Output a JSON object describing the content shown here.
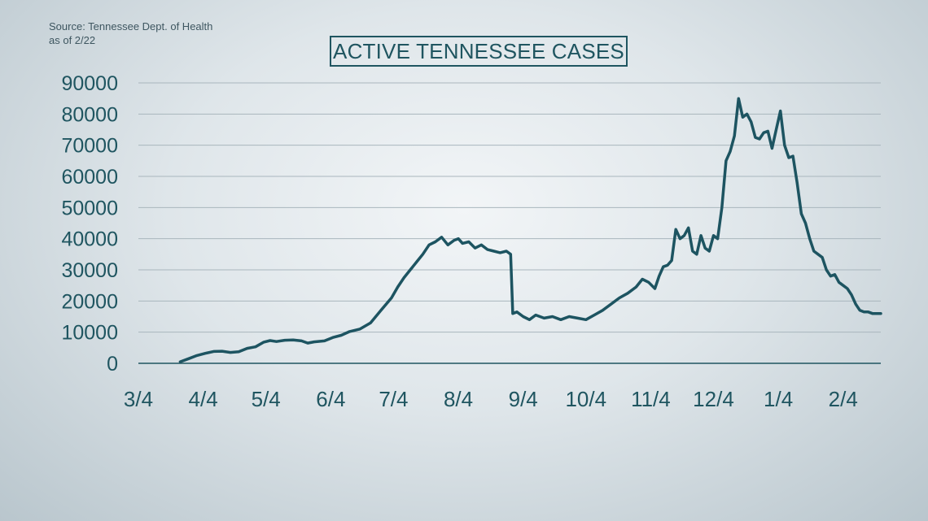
{
  "source": {
    "line1": "Source: Tennessee Dept. of Health",
    "line2": "as of 2/22"
  },
  "colors": {
    "line": "#1d5461",
    "text": "#1f5560",
    "grid": "#a9b6bd"
  },
  "chart_data": {
    "type": "line",
    "title": "ACTIVE TENNESSEE CASES",
    "xlabel": "",
    "ylabel": "",
    "ylim": [
      0,
      90000
    ],
    "yticks": [
      0,
      10000,
      20000,
      30000,
      40000,
      50000,
      60000,
      70000,
      80000,
      90000
    ],
    "ytick_labels": [
      "0",
      "10000",
      "20000",
      "30000",
      "40000",
      "50000",
      "60000",
      "70000",
      "80000",
      "90000"
    ],
    "xlim": [
      "2020-03-04",
      "2021-02-22"
    ],
    "xticks": [
      "2020-03-04",
      "2020-04-04",
      "2020-05-04",
      "2020-06-04",
      "2020-07-04",
      "2020-08-04",
      "2020-09-04",
      "2020-10-04",
      "2020-11-04",
      "2020-12-04",
      "2021-01-04",
      "2021-02-04"
    ],
    "xtick_labels": [
      "3/4",
      "4/4",
      "5/4",
      "6/4",
      "7/4",
      "8/4",
      "9/4",
      "10/4",
      "11/4",
      "12/4",
      "1/4",
      "2/4"
    ],
    "grid": true,
    "series": [
      {
        "name": "",
        "x": [
          "2020-03-24",
          "2020-03-28",
          "2020-04-01",
          "2020-04-05",
          "2020-04-09",
          "2020-04-13",
          "2020-04-17",
          "2020-04-21",
          "2020-04-25",
          "2020-04-29",
          "2020-05-03",
          "2020-05-06",
          "2020-05-09",
          "2020-05-13",
          "2020-05-17",
          "2020-05-21",
          "2020-05-24",
          "2020-05-27",
          "2020-06-01",
          "2020-06-05",
          "2020-06-09",
          "2020-06-13",
          "2020-06-18",
          "2020-06-23",
          "2020-06-28",
          "2020-07-03",
          "2020-07-06",
          "2020-07-09",
          "2020-07-12",
          "2020-07-15",
          "2020-07-18",
          "2020-07-21",
          "2020-07-24",
          "2020-07-27",
          "2020-07-30",
          "2020-08-02",
          "2020-08-04",
          "2020-08-06",
          "2020-08-09",
          "2020-08-12",
          "2020-08-15",
          "2020-08-18",
          "2020-08-21",
          "2020-08-24",
          "2020-08-27",
          "2020-08-29",
          "2020-08-30",
          "2020-09-01",
          "2020-09-04",
          "2020-09-07",
          "2020-09-10",
          "2020-09-14",
          "2020-09-18",
          "2020-09-22",
          "2020-09-26",
          "2020-09-30",
          "2020-10-04",
          "2020-10-08",
          "2020-10-12",
          "2020-10-16",
          "2020-10-20",
          "2020-10-24",
          "2020-10-28",
          "2020-10-31",
          "2020-11-03",
          "2020-11-06",
          "2020-11-08",
          "2020-11-10",
          "2020-11-12",
          "2020-11-14",
          "2020-11-16",
          "2020-11-18",
          "2020-11-20",
          "2020-11-22",
          "2020-11-24",
          "2020-11-26",
          "2020-11-28",
          "2020-11-30",
          "2020-12-02",
          "2020-12-04",
          "2020-12-06",
          "2020-12-08",
          "2020-12-10",
          "2020-12-12",
          "2020-12-14",
          "2020-12-16",
          "2020-12-18",
          "2020-12-20",
          "2020-12-22",
          "2020-12-24",
          "2020-12-26",
          "2020-12-28",
          "2020-12-30",
          "2021-01-01",
          "2021-01-03",
          "2021-01-05",
          "2021-01-07",
          "2021-01-09",
          "2021-01-11",
          "2021-01-13",
          "2021-01-15",
          "2021-01-17",
          "2021-01-19",
          "2021-01-21",
          "2021-01-23",
          "2021-01-25",
          "2021-01-27",
          "2021-01-29",
          "2021-01-31",
          "2021-02-02",
          "2021-02-04",
          "2021-02-06",
          "2021-02-08",
          "2021-02-10",
          "2021-02-12",
          "2021-02-14",
          "2021-02-16",
          "2021-02-18",
          "2021-02-20",
          "2021-02-22"
        ],
        "values": [
          500,
          1500,
          2500,
          3200,
          3800,
          3900,
          3500,
          3700,
          4800,
          5300,
          6800,
          7300,
          7000,
          7400,
          7500,
          7200,
          6500,
          6900,
          7200,
          8300,
          9000,
          10200,
          11000,
          13000,
          17000,
          21000,
          24500,
          27500,
          30000,
          32500,
          35000,
          38000,
          39000,
          40500,
          38000,
          39500,
          40000,
          38500,
          39000,
          37000,
          38000,
          36500,
          36000,
          35500,
          36000,
          35000,
          16000,
          16500,
          15000,
          14000,
          15500,
          14500,
          15000,
          14000,
          15000,
          14500,
          14000,
          15500,
          17000,
          19000,
          21000,
          22500,
          24500,
          27000,
          26000,
          24000,
          28000,
          31000,
          31500,
          33000,
          43000,
          40000,
          41000,
          43500,
          36000,
          35000,
          41000,
          37000,
          36000,
          41000,
          40000,
          50000,
          65000,
          68000,
          73000,
          85000,
          79000,
          80000,
          77500,
          72500,
          72000,
          74000,
          74500,
          69000,
          75000,
          81000,
          70000,
          66000,
          66500,
          58000,
          48000,
          45000,
          40000,
          36000,
          35000,
          34000,
          30000,
          28000,
          28500,
          26000,
          25000,
          24000,
          22000,
          19000,
          17000,
          16500,
          16500,
          16000,
          16000,
          16000
        ]
      }
    ]
  }
}
